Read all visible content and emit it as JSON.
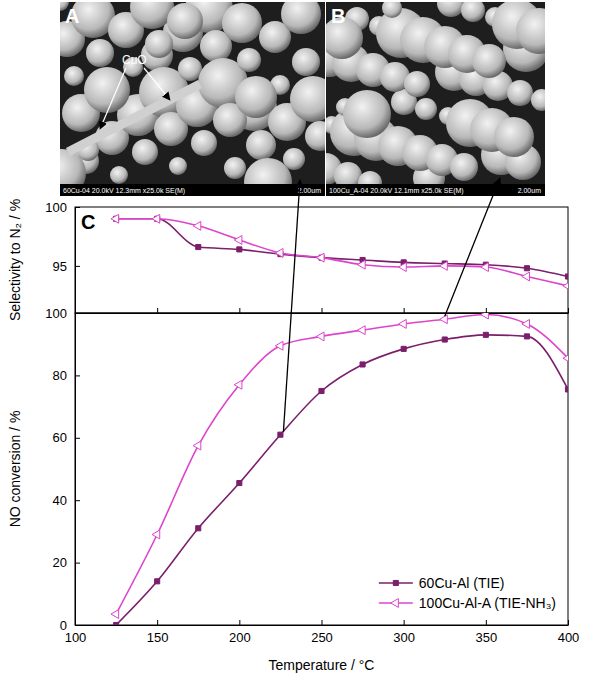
{
  "chart_data": [
    {
      "type": "line",
      "y_label": "Selectivity to N₂ / %",
      "annotations": [
        "C"
      ],
      "x": [
        125,
        150,
        175,
        200,
        225,
        250,
        275,
        300,
        325,
        350,
        375,
        400
      ],
      "series": [
        {
          "color": "#7b1f6b",
          "marker": "square",
          "values": [
            99.0,
            99.0,
            96.6,
            96.4,
            96.0,
            95.7,
            95.5,
            95.3,
            95.2,
            95.1,
            94.8,
            94.1
          ]
        },
        {
          "color": "#dd44cc",
          "marker": "triangle",
          "values": [
            99.0,
            99.0,
            98.4,
            97.2,
            96.1,
            95.7,
            95.1,
            94.9,
            95.0,
            94.9,
            94.1,
            93.3
          ]
        }
      ],
      "xlim": [
        100,
        400
      ],
      "xticks": [
        100,
        150,
        200,
        250,
        300,
        350,
        400
      ],
      "ylim": [
        91,
        100
      ],
      "yticks": [
        95,
        100
      ],
      "tick_labels": "y"
    },
    {
      "type": "line",
      "x_label": "Temperature / °C",
      "y_label": "NO conversion / %",
      "x": [
        125,
        150,
        175,
        200,
        225,
        250,
        275,
        300,
        325,
        350,
        375,
        400
      ],
      "series": [
        {
          "name": "60Cu-Al (TIE)",
          "color": "#7b1f6b",
          "marker": "square",
          "values": [
            0,
            14,
            31,
            45.5,
            61,
            75,
            83.5,
            88.5,
            91.5,
            93,
            92.5,
            75.5
          ]
        },
        {
          "name": "100Cu-Al-A (TIE-NH₃)",
          "color": "#dd44cc",
          "marker": "triangle",
          "values": [
            3.5,
            29,
            57.5,
            77,
            89.5,
            92.5,
            94.5,
            96.5,
            98,
            99.5,
            96.5,
            85.5
          ]
        }
      ],
      "xlim": [
        100,
        400
      ],
      "xticks": [
        100,
        150,
        200,
        250,
        300,
        350,
        400
      ],
      "ylim": [
        0,
        100
      ],
      "yticks": [
        0,
        20,
        40,
        60,
        80,
        100
      ],
      "legend": "lower right"
    }
  ],
  "images": [
    {
      "label": "A",
      "annotation": "CuO",
      "caption": "60Cu-04 20.0kV 12.3mm x25.0k SE(M)",
      "scale_bar": "2.00um"
    },
    {
      "label": "B",
      "caption": "100Cu_A-04 20.0kV 12.1mm x25.0k SE(M)",
      "scale_bar": "2.00um"
    }
  ]
}
